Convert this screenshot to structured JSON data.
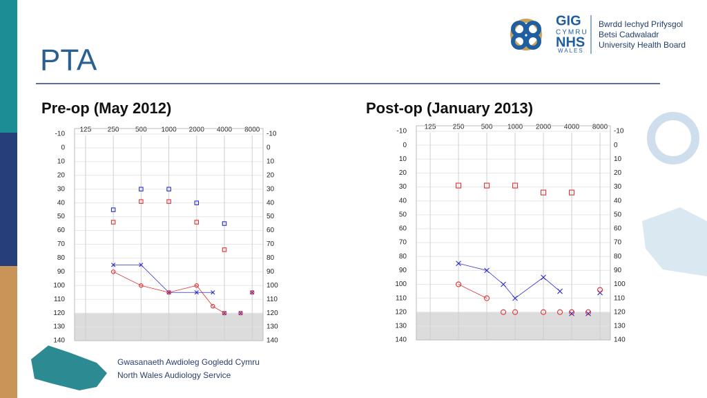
{
  "slide": {
    "title": "PTA",
    "logo": {
      "gig": "GIG",
      "cymru": "CYMRU",
      "nhs": "NHS",
      "wales": "WALES",
      "board": [
        "Bwrdd Iechyd Prifysgol",
        "Betsi Cadwaladr",
        "University Health Board"
      ]
    },
    "footer": [
      "Gwasanaeth Awdioleg Gogledd Cymru",
      "North Wales Audiology Service"
    ]
  },
  "chart_data": [
    {
      "type": "audiogram",
      "title": "Pre-op (May 2012)",
      "log_x": true,
      "y_inverted": true,
      "grid": true,
      "xlim": [
        95,
        10500
      ],
      "xticks": [
        125,
        250,
        500,
        1000,
        2000,
        4000,
        8000
      ],
      "ylim": [
        -14,
        140
      ],
      "yticks": [
        -10,
        0,
        10,
        20,
        30,
        40,
        50,
        60,
        70,
        80,
        90,
        100,
        110,
        120,
        130,
        140
      ],
      "shaded": [
        120,
        140
      ],
      "series": [
        {
          "color": "#2a2acc",
          "marker": "square",
          "line": false,
          "x": [
            250,
            500,
            1000,
            2000,
            4000
          ],
          "values": [
            45,
            30,
            30,
            40,
            55
          ]
        },
        {
          "color": "#e03030",
          "marker": "square",
          "line": false,
          "x": [
            250,
            500,
            1000,
            2000,
            4000
          ],
          "values": [
            54,
            39,
            39,
            54,
            74
          ]
        },
        {
          "color": "#2a2acc",
          "marker": "cross",
          "line": true,
          "x": [
            250,
            500,
            1000,
            2000,
            3000
          ],
          "values": [
            85,
            85,
            105,
            105,
            105
          ]
        },
        {
          "color": "#2a2acc",
          "marker": "cross",
          "line": false,
          "x": [
            4000,
            6000,
            8000
          ],
          "values": [
            120,
            120,
            105
          ]
        },
        {
          "color": "#e03030",
          "marker": "circle",
          "line": true,
          "x": [
            250,
            500,
            1000,
            2000,
            3000,
            4000
          ],
          "values": [
            90,
            100,
            105,
            100,
            115,
            120
          ]
        },
        {
          "color": "#e03030",
          "marker": "circle",
          "line": false,
          "x": [
            6000,
            8000
          ],
          "values": [
            120,
            105
          ]
        }
      ]
    },
    {
      "type": "audiogram",
      "title": "Post-op (January 2013)",
      "log_x": true,
      "y_inverted": true,
      "grid": true,
      "xlim": [
        89,
        10300
      ],
      "xticks": [
        125,
        250,
        500,
        1000,
        2000,
        4000,
        8000
      ],
      "ylim": [
        -14,
        140
      ],
      "yticks": [
        -10,
        0,
        10,
        20,
        30,
        40,
        50,
        60,
        70,
        80,
        90,
        100,
        110,
        120,
        130,
        140
      ],
      "shaded": [
        120,
        140
      ],
      "series": [
        {
          "color": "#e03030",
          "marker": "square",
          "line": false,
          "x": [
            250,
            500,
            1000,
            2000,
            4000
          ],
          "values": [
            29,
            29,
            29,
            34,
            34
          ]
        },
        {
          "color": "#2a2acc",
          "marker": "cross",
          "line": true,
          "x": [
            250,
            500,
            750,
            1000,
            2000,
            3000
          ],
          "values": [
            85,
            90,
            100,
            110,
            95,
            105
          ]
        },
        {
          "color": "#2a2acc",
          "marker": "cross",
          "line": false,
          "x": [
            4000,
            6000,
            8000
          ],
          "values": [
            121,
            121,
            106
          ]
        },
        {
          "color": "#e03030",
          "marker": "circle",
          "line": true,
          "x": [
            250,
            500
          ],
          "values": [
            100,
            110
          ]
        },
        {
          "color": "#e03030",
          "marker": "circle",
          "line": false,
          "x": [
            750,
            1000,
            2000,
            3000,
            4000,
            6000,
            8000
          ],
          "values": [
            120,
            120,
            120,
            120,
            120,
            120,
            104
          ]
        }
      ]
    }
  ]
}
